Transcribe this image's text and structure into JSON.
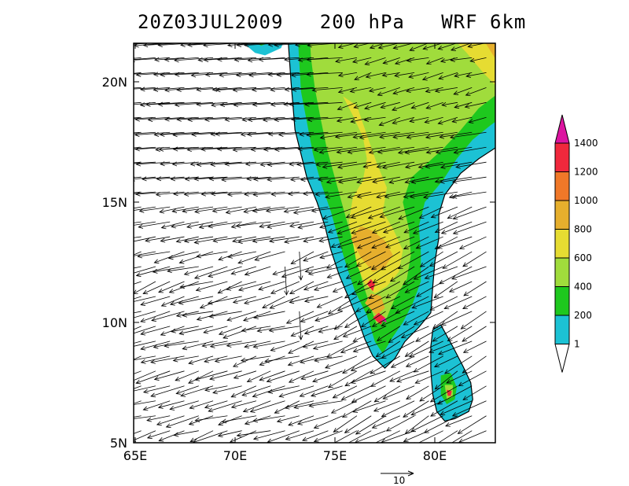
{
  "title": "20Z03JUL2009   200 hPa   WRF 6km",
  "map": {
    "lon_range": [
      65,
      83
    ],
    "lat_range": [
      5,
      22
    ],
    "lon_ticks": [
      {
        "v": 65,
        "label": "65E"
      },
      {
        "v": 70,
        "label": "70E"
      },
      {
        "v": 75,
        "label": "75E"
      },
      {
        "v": 80,
        "label": "80E"
      }
    ],
    "lat_ticks": [
      {
        "v": 5,
        "label": "5N"
      },
      {
        "v": 10,
        "label": "10N"
      },
      {
        "v": 15,
        "label": "15N"
      },
      {
        "v": 20,
        "label": "20N"
      }
    ],
    "ocean_color": "#ffffff",
    "vector_color": "#000000"
  },
  "colorbar": {
    "levels": [
      {
        "label": "1",
        "color": "#ffffff"
      },
      {
        "label": "200",
        "color": "#1cc2d4"
      },
      {
        "label": "400",
        "color": "#1ec81e"
      },
      {
        "label": "600",
        "color": "#a0dc3c"
      },
      {
        "label": "800",
        "color": "#e6dc32"
      },
      {
        "label": "1000",
        "color": "#e6af2d"
      },
      {
        "label": "1200",
        "color": "#f07828"
      },
      {
        "label": "1400",
        "color": "#f0283c"
      }
    ],
    "top_color": "#dc14a0"
  },
  "reference_vector": {
    "label": "10"
  }
}
